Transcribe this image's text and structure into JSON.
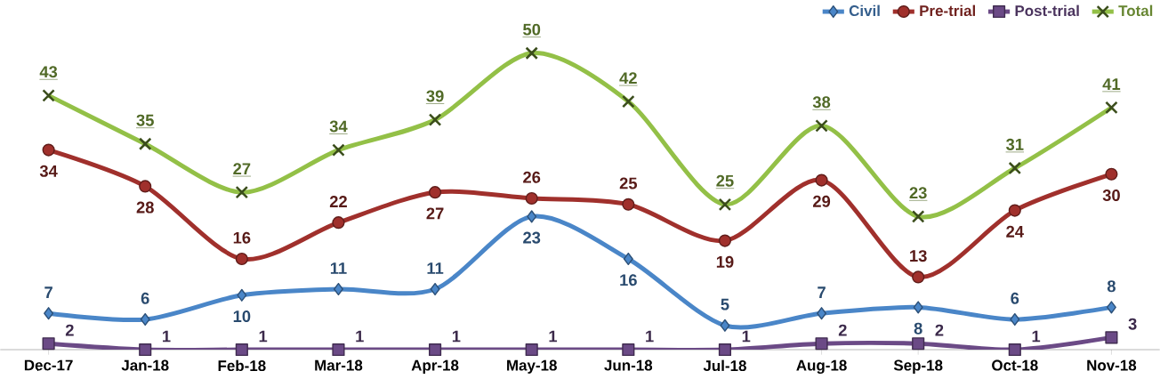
{
  "chart_data": {
    "type": "line",
    "categories": [
      "Dec-17",
      "Jan-18",
      "Feb-18",
      "Mar-18",
      "Apr-18",
      "May-18",
      "Jun-18",
      "Jul-18",
      "Aug-18",
      "Sep-18",
      "Oct-18",
      "Nov-18"
    ],
    "series": [
      {
        "name": "Civil",
        "color": "#4a86c8",
        "marker": "diamond",
        "values": [
          7,
          6,
          10,
          11,
          11,
          23,
          16,
          5,
          7,
          8,
          6,
          8
        ]
      },
      {
        "name": "Pre-trial",
        "color": "#a0302c",
        "marker": "circle",
        "values": [
          34,
          28,
          16,
          22,
          27,
          26,
          25,
          19,
          29,
          13,
          24,
          30
        ]
      },
      {
        "name": "Post-trial",
        "color": "#6b4a86",
        "marker": "square",
        "values": [
          2,
          1,
          1,
          1,
          1,
          1,
          1,
          1,
          2,
          2,
          1,
          3
        ]
      },
      {
        "name": "Total",
        "color": "#93c047",
        "marker": "cross",
        "values": [
          43,
          35,
          27,
          34,
          39,
          50,
          42,
          25,
          38,
          23,
          31,
          41
        ]
      }
    ],
    "data_labels": true,
    "legend": "top right"
  }
}
